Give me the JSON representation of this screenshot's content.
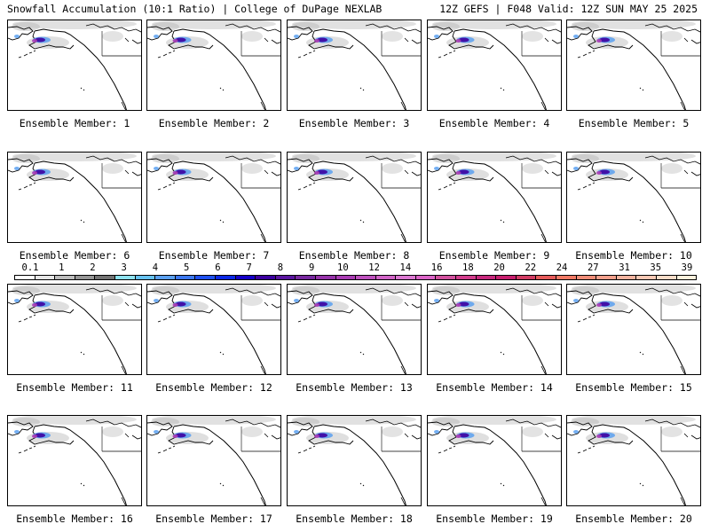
{
  "header": {
    "title_left": "Snowfall Accumulation (10:1 Ratio) | College of DuPage NEXLAB",
    "title_right": "12Z GEFS | F048 Valid: 12Z SUN MAY 25 2025"
  },
  "panels": [
    {
      "label": "Ensemble Member: 1"
    },
    {
      "label": "Ensemble Member: 2"
    },
    {
      "label": "Ensemble Member: 3"
    },
    {
      "label": "Ensemble Member: 4"
    },
    {
      "label": "Ensemble Member: 5"
    },
    {
      "label": "Ensemble Member: 6"
    },
    {
      "label": "Ensemble Member: 7"
    },
    {
      "label": "Ensemble Member: 8"
    },
    {
      "label": "Ensemble Member: 9"
    },
    {
      "label": "Ensemble Member: 10"
    },
    {
      "label": "Ensemble Member: 11"
    },
    {
      "label": "Ensemble Member: 12"
    },
    {
      "label": "Ensemble Member: 13"
    },
    {
      "label": "Ensemble Member: 14"
    },
    {
      "label": "Ensemble Member: 15"
    },
    {
      "label": "Ensemble Member: 16"
    },
    {
      "label": "Ensemble Member: 17"
    },
    {
      "label": "Ensemble Member: 18"
    },
    {
      "label": "Ensemble Member: 19"
    },
    {
      "label": "Ensemble Member: 20"
    }
  ],
  "colorbar": {
    "labels": [
      "0.1",
      "1",
      "2",
      "3",
      "4",
      "5",
      "6",
      "7",
      "8",
      "9",
      "10",
      "12",
      "14",
      "16",
      "18",
      "20",
      "22",
      "24",
      "27",
      "31",
      "35",
      "39"
    ],
    "colors": [
      "#ffffff",
      "#e6e6e6",
      "#bdbdbd",
      "#969696",
      "#737373",
      "#8ee3f0",
      "#66c2f0",
      "#5aa0f0",
      "#3c78f0",
      "#1e50f0",
      "#0a28e6",
      "#1400c8",
      "#3c00a0",
      "#5a14a0",
      "#7828a0",
      "#9632aa",
      "#aa3cb4",
      "#be50be",
      "#d264c8",
      "#dc78d2",
      "#dc64c8",
      "#d2509e",
      "#d23c8c",
      "#c8287d",
      "#c81e6e",
      "#d23c64",
      "#e65a5a",
      "#f07864",
      "#f08c78",
      "#f5a08c",
      "#f5b4a0",
      "#fac8b4",
      "#fadcc8",
      "#fff0dc"
    ]
  }
}
